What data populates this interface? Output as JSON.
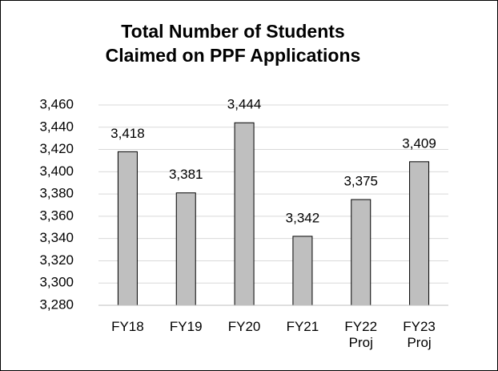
{
  "chart_data": {
    "type": "bar",
    "title": "Total Number of Students Claimed on PPF Applications",
    "categories": [
      "FY18",
      "FY19",
      "FY20",
      "FY21",
      "FY22 Proj",
      "FY23 Proj"
    ],
    "values": [
      3418,
      3381,
      3444,
      3342,
      3375,
      3409
    ],
    "value_labels": [
      "3,418",
      "3,381",
      "3,444",
      "3,342",
      "3,375",
      "3,409"
    ],
    "color": "#bfbfbf",
    "ylim": [
      3280,
      3460
    ],
    "yticks": [
      {
        "value": 3280,
        "label": "3,280"
      },
      {
        "value": 3300,
        "label": "3,300"
      },
      {
        "value": 3320,
        "label": "3,320"
      },
      {
        "value": 3340,
        "label": "3,340"
      },
      {
        "value": 3360,
        "label": "3,360"
      },
      {
        "value": 3380,
        "label": "3,380"
      },
      {
        "value": 3400,
        "label": "3,400"
      },
      {
        "value": 3420,
        "label": "3,420"
      },
      {
        "value": 3440,
        "label": "3,440"
      },
      {
        "value": 3460,
        "label": "3,460"
      }
    ],
    "grid": true
  }
}
